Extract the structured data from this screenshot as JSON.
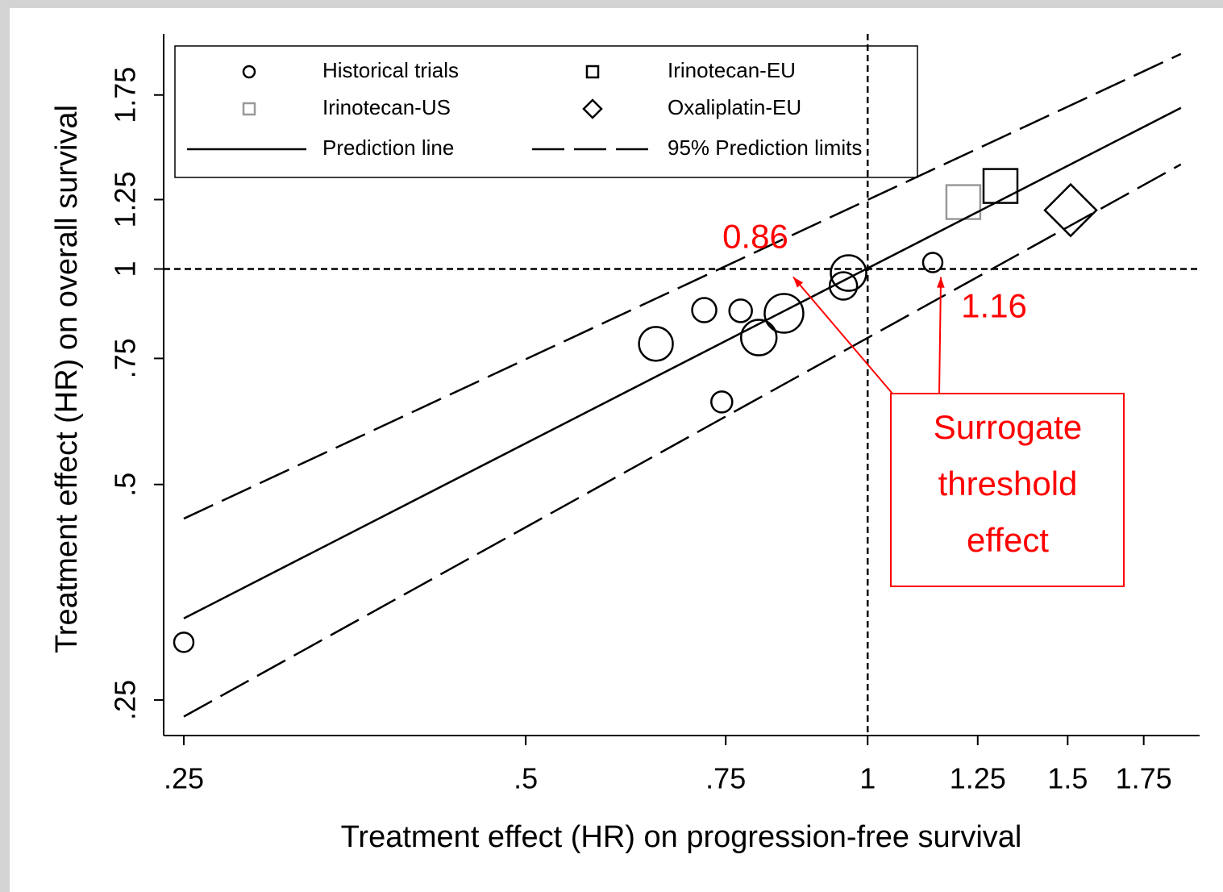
{
  "chart_data": {
    "type": "scatter",
    "xlabel": "Treatment effect (HR) on progression-free survival",
    "ylabel": "Treatment effect (HR) on overall survival",
    "xscale": "log",
    "yscale": "log",
    "xlim": [
      0.24,
      1.96
    ],
    "ylim": [
      0.223,
      2.13
    ],
    "xticks": [
      {
        "value": 0.25,
        "label": ".25"
      },
      {
        "value": 0.5,
        "label": ".5"
      },
      {
        "value": 0.75,
        "label": ".75"
      },
      1,
      1.25,
      1.5,
      1.75
    ],
    "yticks": [
      {
        "value": 0.25,
        "label": ".25"
      },
      {
        "value": 0.5,
        "label": ".5"
      },
      {
        "value": 0.75,
        "label": ".75"
      },
      1,
      1.25,
      1.75
    ],
    "legend": "upper left",
    "reference_x": 1,
    "reference_y": 1,
    "series": [
      {
        "name": "Historical trials",
        "marker": "circle",
        "color": "#000000",
        "x": [
          0.25,
          0.651,
          0.718,
          0.773,
          0.744,
          0.802,
          0.844,
          0.952,
          0.962,
          1.141
        ],
        "values": [
          0.301,
          0.786,
          0.876,
          0.874,
          0.652,
          0.802,
          0.867,
          0.947,
          0.987,
          1.021
        ],
        "sizes": [
          12,
          21,
          15,
          14,
          13,
          22,
          24,
          17,
          22,
          12
        ]
      },
      {
        "name": "Irinotecan-EU",
        "marker": "square",
        "color": "#000000",
        "x": [
          1.309
        ],
        "values": [
          1.306
        ],
        "sizes": [
          21
        ]
      },
      {
        "name": "Irinotecan-US",
        "marker": "square",
        "color": "#999999",
        "x": [
          1.214
        ],
        "values": [
          1.24
        ],
        "sizes": [
          21
        ]
      },
      {
        "name": "Oxaliplatin-EU",
        "marker": "diamond",
        "color": "#000000",
        "x": [
          1.509
        ],
        "values": [
          1.208
        ],
        "sizes": [
          32
        ]
      },
      {
        "name": "Prediction line",
        "marker": "line",
        "dash": "solid",
        "color": "#000000",
        "x": [
          0.25,
          1.887
        ],
        "values": [
          0.325,
          1.679
        ]
      },
      {
        "name": "95% Prediction limits",
        "marker": "line",
        "dash": "long",
        "color": "#000000",
        "x": [
          0.25,
          1.887,
          null,
          0.25,
          1.887
        ],
        "values": [
          0.448,
          1.997,
          null,
          0.237,
          1.4
        ]
      }
    ],
    "annotation": {
      "lines": [
        "Surrogate",
        "threshold",
        "effect"
      ],
      "thresholds": [
        0.86,
        1.16
      ],
      "color": "#ff0000"
    }
  }
}
